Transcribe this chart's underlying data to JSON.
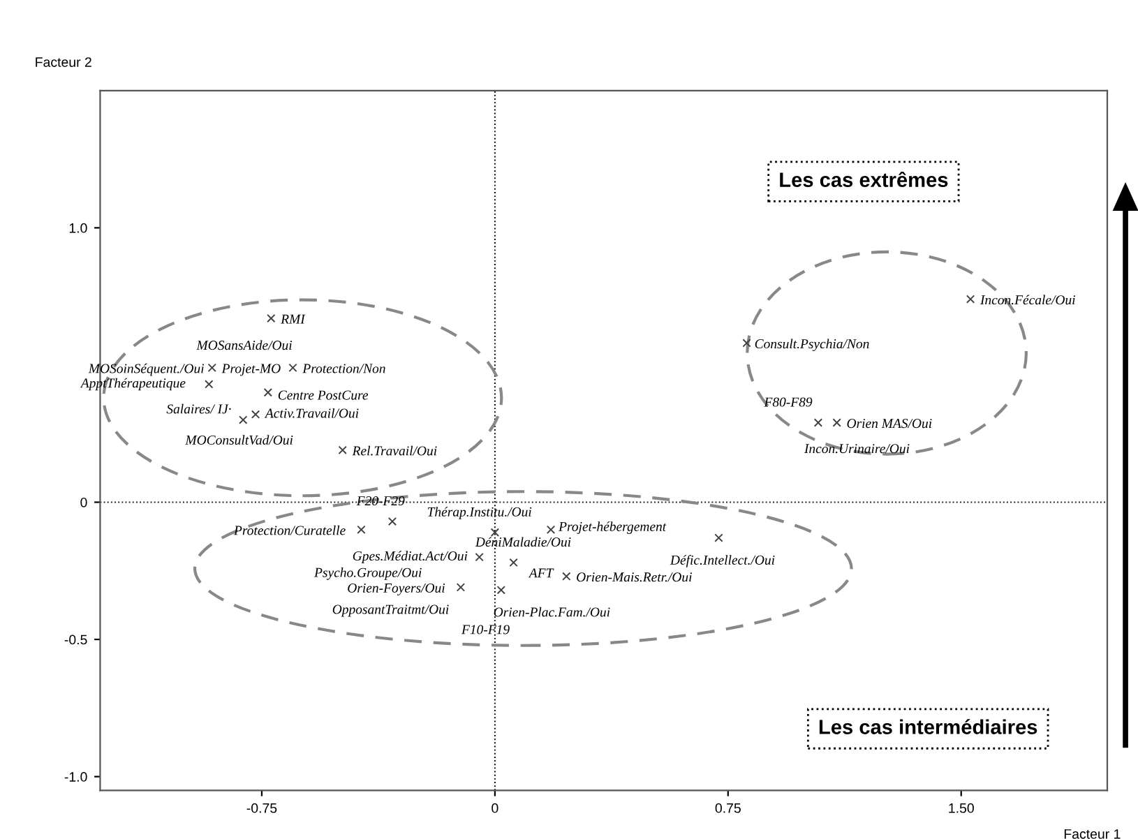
{
  "chart_data": {
    "type": "scatter",
    "xlabel": "Facteur 1",
    "ylabel": "Facteur 2",
    "xlim": [
      -1.27,
      1.97
    ],
    "ylim": [
      -1.05,
      1.5
    ],
    "xticks": [
      -0.75,
      0,
      0.75,
      {
        "value": 1.5,
        "label": "1.50"
      }
    ],
    "yticks": [
      {
        "value": 1.0,
        "label": "1.0"
      },
      0,
      -0.5,
      {
        "value": -1.0,
        "label": "-1.0"
      }
    ],
    "grid": false,
    "marker": "cross",
    "series": [
      {
        "color": "#404040",
        "x": [
          -0.72,
          -0.91,
          -0.65,
          -0.92,
          -0.73,
          -0.77,
          -0.81,
          -0.49,
          1.53,
          0.81,
          1.04,
          1.1,
          -0.43,
          -0.33,
          0.0,
          0.18,
          0.72,
          -0.05,
          0.06,
          0.23,
          -0.11,
          0.02
        ],
        "values": [
          0.67,
          0.49,
          0.49,
          0.43,
          0.4,
          0.32,
          0.3,
          0.19,
          0.74,
          0.58,
          0.29,
          0.29,
          -0.1,
          -0.07,
          -0.11,
          -0.1,
          -0.13,
          -0.2,
          -0.22,
          -0.27,
          -0.31,
          -0.32
        ]
      }
    ],
    "ref_lines": [
      {
        "axis": "x",
        "value": 0,
        "line_style": "dotted",
        "color": "#000000"
      },
      {
        "axis": "y",
        "value": 0,
        "line_style": "dotted",
        "color": "#202020"
      }
    ],
    "annotations": [
      {
        "text": "RMI",
        "x": -0.72,
        "y": 0.67
      },
      {
        "text": "MOSansAide/Oui",
        "x": -0.91,
        "y": 0.49
      },
      {
        "text": "MOSoinSéquent./Oui",
        "x": -0.91,
        "y": 0.49
      },
      {
        "text": "Projet-MO",
        "x": -0.91,
        "y": 0.49
      },
      {
        "text": "Protection/Non",
        "x": -0.65,
        "y": 0.49
      },
      {
        "text": "ApptThérapeutique",
        "x": -0.92,
        "y": 0.43
      },
      {
        "text": "Centre PostCure",
        "x": -0.73,
        "y": 0.4
      },
      {
        "text": "Salaires/ IJ·",
        "x": -0.81,
        "y": 0.3
      },
      {
        "text": "Activ.Travail/Oui",
        "x": -0.77,
        "y": 0.32
      },
      {
        "text": "MOConsultVad/Oui",
        "x": -0.81,
        "y": 0.3
      },
      {
        "text": "Rel.Travail/Oui",
        "x": -0.49,
        "y": 0.19
      },
      {
        "text": "Incon.Fécale/Oui",
        "x": 1.53,
        "y": 0.74
      },
      {
        "text": "Consult.Psychia/Non",
        "x": 0.81,
        "y": 0.58
      },
      {
        "text": "F80-F89",
        "x": 1.04,
        "y": 0.29
      },
      {
        "text": "Orien MAS/Oui",
        "x": 1.1,
        "y": 0.29
      },
      {
        "text": "Incon.Urinaire/Oui",
        "x": 1.04,
        "y": 0.29
      },
      {
        "text": "F20-F29",
        "x": -0.33,
        "y": -0.07
      },
      {
        "text": "Protection/Curatelle",
        "x": -0.43,
        "y": -0.1
      },
      {
        "text": "Thérap.Institu./Oui",
        "x": 0.0,
        "y": -0.11
      },
      {
        "text": "Projet-hébergement",
        "x": 0.18,
        "y": -0.1
      },
      {
        "text": "Défic.Intellect./Oui",
        "x": 0.72,
        "y": -0.13
      },
      {
        "text": "Gpes.Médiat.Act/Oui",
        "x": -0.05,
        "y": -0.2
      },
      {
        "text": "DéniMaladie/Oui",
        "x": 0.06,
        "y": -0.22
      },
      {
        "text": "Psycho.Groupe/Oui",
        "x": -0.11,
        "y": -0.31
      },
      {
        "text": "AFT",
        "x": 0.06,
        "y": -0.22
      },
      {
        "text": "Orien-Mais.Retr./Oui",
        "x": 0.23,
        "y": -0.27
      },
      {
        "text": "Orien-Foyers/Oui",
        "x": -0.11,
        "y": -0.31
      },
      {
        "text": "OpposantTraitmt/Oui",
        "x": -0.11,
        "y": -0.31
      },
      {
        "text": "Orien-Plac.Fam./Oui",
        "x": 0.02,
        "y": -0.32
      },
      {
        "text": "F10-F19",
        "x": 0.02,
        "y": -0.32
      },
      "Les cas extrêmes",
      "Les cas intermédiaires"
    ]
  }
}
